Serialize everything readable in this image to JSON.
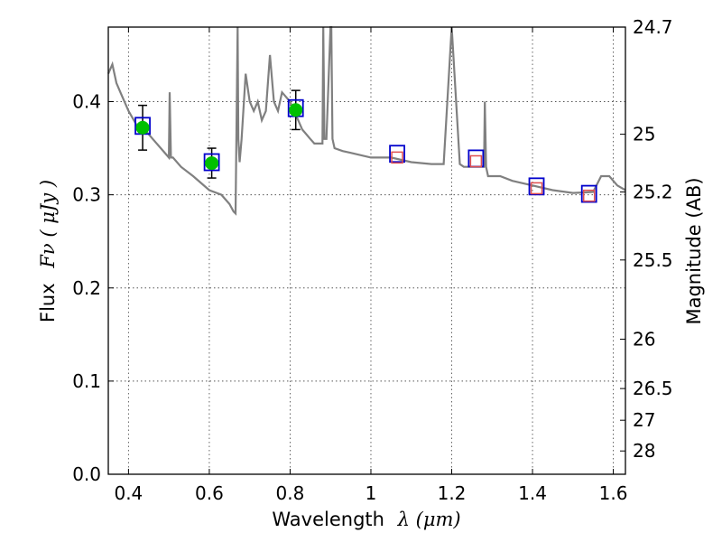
{
  "chart_data": {
    "type": "scatter",
    "xlabel": "Wavelength",
    "xlabel_math": "λ (μm)",
    "ylabel": "Flux",
    "ylabel_math": "Fν  ( μJy )",
    "y2label": "Magnitude (AB)",
    "xlim": [
      0.35,
      1.63
    ],
    "ylim": [
      0.0,
      0.48
    ],
    "grid": true,
    "x_ticks": [
      0.4,
      0.6,
      0.8,
      1.0,
      1.2,
      1.4,
      1.6
    ],
    "x_tick_labels": [
      "0.4",
      "0.6",
      "0.8",
      "1",
      "1.2",
      "1.4",
      "1.6"
    ],
    "y_ticks": [
      0.0,
      0.1,
      0.2,
      0.3,
      0.4
    ],
    "y_tick_labels": [
      "0.0",
      "0.1",
      "0.2",
      "0.3",
      "0.4"
    ],
    "y2_ticks": [
      {
        "label": "24.7",
        "flux": 0.48
      },
      {
        "label": "25",
        "flux": 0.365
      },
      {
        "label": "25.2",
        "flux": 0.303
      },
      {
        "label": "25.5",
        "flux": 0.23
      },
      {
        "label": "26",
        "flux": 0.145
      },
      {
        "label": "26.5",
        "flux": 0.092
      },
      {
        "label": "27",
        "flux": 0.058
      },
      {
        "label": "28",
        "flux": 0.025
      }
    ],
    "series": [
      {
        "kind": "model_spectrum",
        "color": "#808080",
        "x": [
          0.35,
          0.36,
          0.37,
          0.38,
          0.4,
          0.42,
          0.44,
          0.46,
          0.48,
          0.5,
          0.502,
          0.505,
          0.51,
          0.53,
          0.56,
          0.6,
          0.63,
          0.65,
          0.66,
          0.665,
          0.67,
          0.672,
          0.675,
          0.68,
          0.69,
          0.7,
          0.71,
          0.72,
          0.73,
          0.74,
          0.75,
          0.76,
          0.77,
          0.78,
          0.8,
          0.82,
          0.83,
          0.84,
          0.85,
          0.86,
          0.88,
          0.882,
          0.885,
          0.89,
          0.9,
          0.902,
          0.905,
          0.91,
          0.93,
          0.95,
          1.0,
          1.05,
          1.1,
          1.15,
          1.18,
          1.2,
          1.22,
          1.23,
          1.24,
          1.26,
          1.28,
          1.282,
          1.285,
          1.29,
          1.3,
          1.32,
          1.35,
          1.4,
          1.45,
          1.5,
          1.55,
          1.57,
          1.59,
          1.61,
          1.63
        ],
        "y": [
          0.43,
          0.44,
          0.42,
          0.41,
          0.39,
          0.375,
          0.37,
          0.36,
          0.35,
          0.34,
          0.41,
          0.34,
          0.34,
          0.33,
          0.32,
          0.305,
          0.3,
          0.29,
          0.282,
          0.28,
          0.48,
          0.36,
          0.335,
          0.36,
          0.43,
          0.4,
          0.39,
          0.4,
          0.38,
          0.39,
          0.45,
          0.4,
          0.39,
          0.41,
          0.4,
          0.38,
          0.37,
          0.365,
          0.36,
          0.355,
          0.355,
          0.48,
          0.36,
          0.36,
          0.48,
          0.48,
          0.36,
          0.35,
          0.347,
          0.345,
          0.34,
          0.34,
          0.335,
          0.333,
          0.333,
          0.48,
          0.333,
          0.33,
          0.33,
          0.33,
          0.33,
          0.4,
          0.33,
          0.32,
          0.32,
          0.32,
          0.315,
          0.31,
          0.305,
          0.302,
          0.303,
          0.32,
          0.32,
          0.31,
          0.305
        ]
      },
      {
        "kind": "observed_photometry",
        "marker": "circle",
        "color": "#00c000",
        "x": [
          0.435,
          0.606,
          0.814
        ],
        "y": [
          0.372,
          0.334,
          0.391
        ],
        "yerr": [
          0.024,
          0.016,
          0.021
        ]
      },
      {
        "kind": "model_photometry",
        "marker": "square",
        "color": "#0000cc",
        "x": [
          0.435,
          0.606,
          0.814,
          1.065,
          1.26,
          1.41,
          1.54
        ],
        "y": [
          0.374,
          0.335,
          0.393,
          0.344,
          0.339,
          0.309,
          0.301
        ]
      },
      {
        "kind": "predicted_upper",
        "marker": "open-square",
        "color": "#e05050",
        "x": [
          1.065,
          1.26,
          1.41,
          1.54
        ],
        "y": [
          0.34,
          0.336,
          0.307,
          0.299
        ]
      }
    ]
  }
}
